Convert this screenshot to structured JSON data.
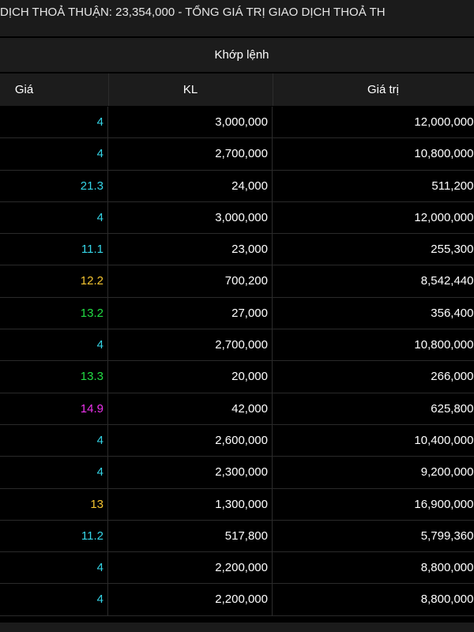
{
  "ticker": {
    "text": "DỊCH THOẢ THUẬN: 23,354,000  -  TỔNG GIÁ TRỊ GIAO DỊCH THOẢ TH"
  },
  "table": {
    "group_header": "Khớp lệnh",
    "columns": [
      "Giá",
      "KL",
      "Giá trị"
    ],
    "rows": [
      {
        "price": "4",
        "price_color": "#35d6e8",
        "volume": "3,000,000",
        "value": "12,000,000..."
      },
      {
        "price": "4",
        "price_color": "#35d6e8",
        "volume": "2,700,000",
        "value": "10,800,000..."
      },
      {
        "price": "21.3",
        "price_color": "#35d6e8",
        "volume": "24,000",
        "value": "511,200..."
      },
      {
        "price": "4",
        "price_color": "#35d6e8",
        "volume": "3,000,000",
        "value": "12,000,000..."
      },
      {
        "price": "11.1",
        "price_color": "#35d6e8",
        "volume": "23,000",
        "value": "255,300..."
      },
      {
        "price": "12.2",
        "price_color": "#f4c430",
        "volume": "700,200",
        "value": "8,542,440..."
      },
      {
        "price": "13.2",
        "price_color": "#22dd44",
        "volume": "27,000",
        "value": "356,400..."
      },
      {
        "price": "4",
        "price_color": "#35d6e8",
        "volume": "2,700,000",
        "value": "10,800,000..."
      },
      {
        "price": "13.3",
        "price_color": "#22dd44",
        "volume": "20,000",
        "value": "266,000..."
      },
      {
        "price": "14.9",
        "price_color": "#ee33ee",
        "volume": "42,000",
        "value": "625,800..."
      },
      {
        "price": "4",
        "price_color": "#35d6e8",
        "volume": "2,600,000",
        "value": "10,400,000..."
      },
      {
        "price": "4",
        "price_color": "#35d6e8",
        "volume": "2,300,000",
        "value": "9,200,000..."
      },
      {
        "price": "13",
        "price_color": "#f4c430",
        "volume": "1,300,000",
        "value": "16,900,000..."
      },
      {
        "price": "11.2",
        "price_color": "#35d6e8",
        "volume": "517,800",
        "value": "5,799,360..."
      },
      {
        "price": "4",
        "price_color": "#35d6e8",
        "volume": "2,200,000",
        "value": "8,800,000..."
      },
      {
        "price": "4",
        "price_color": "#35d6e8",
        "volume": "2,200,000",
        "value": "8,800,000..."
      }
    ]
  },
  "colors": {
    "background": "#000000",
    "header_bg": "#1c1c1c",
    "ceiling": "#ee33ee",
    "floor": "#35d6e8",
    "reference": "#f4c430",
    "increase": "#22dd44"
  }
}
